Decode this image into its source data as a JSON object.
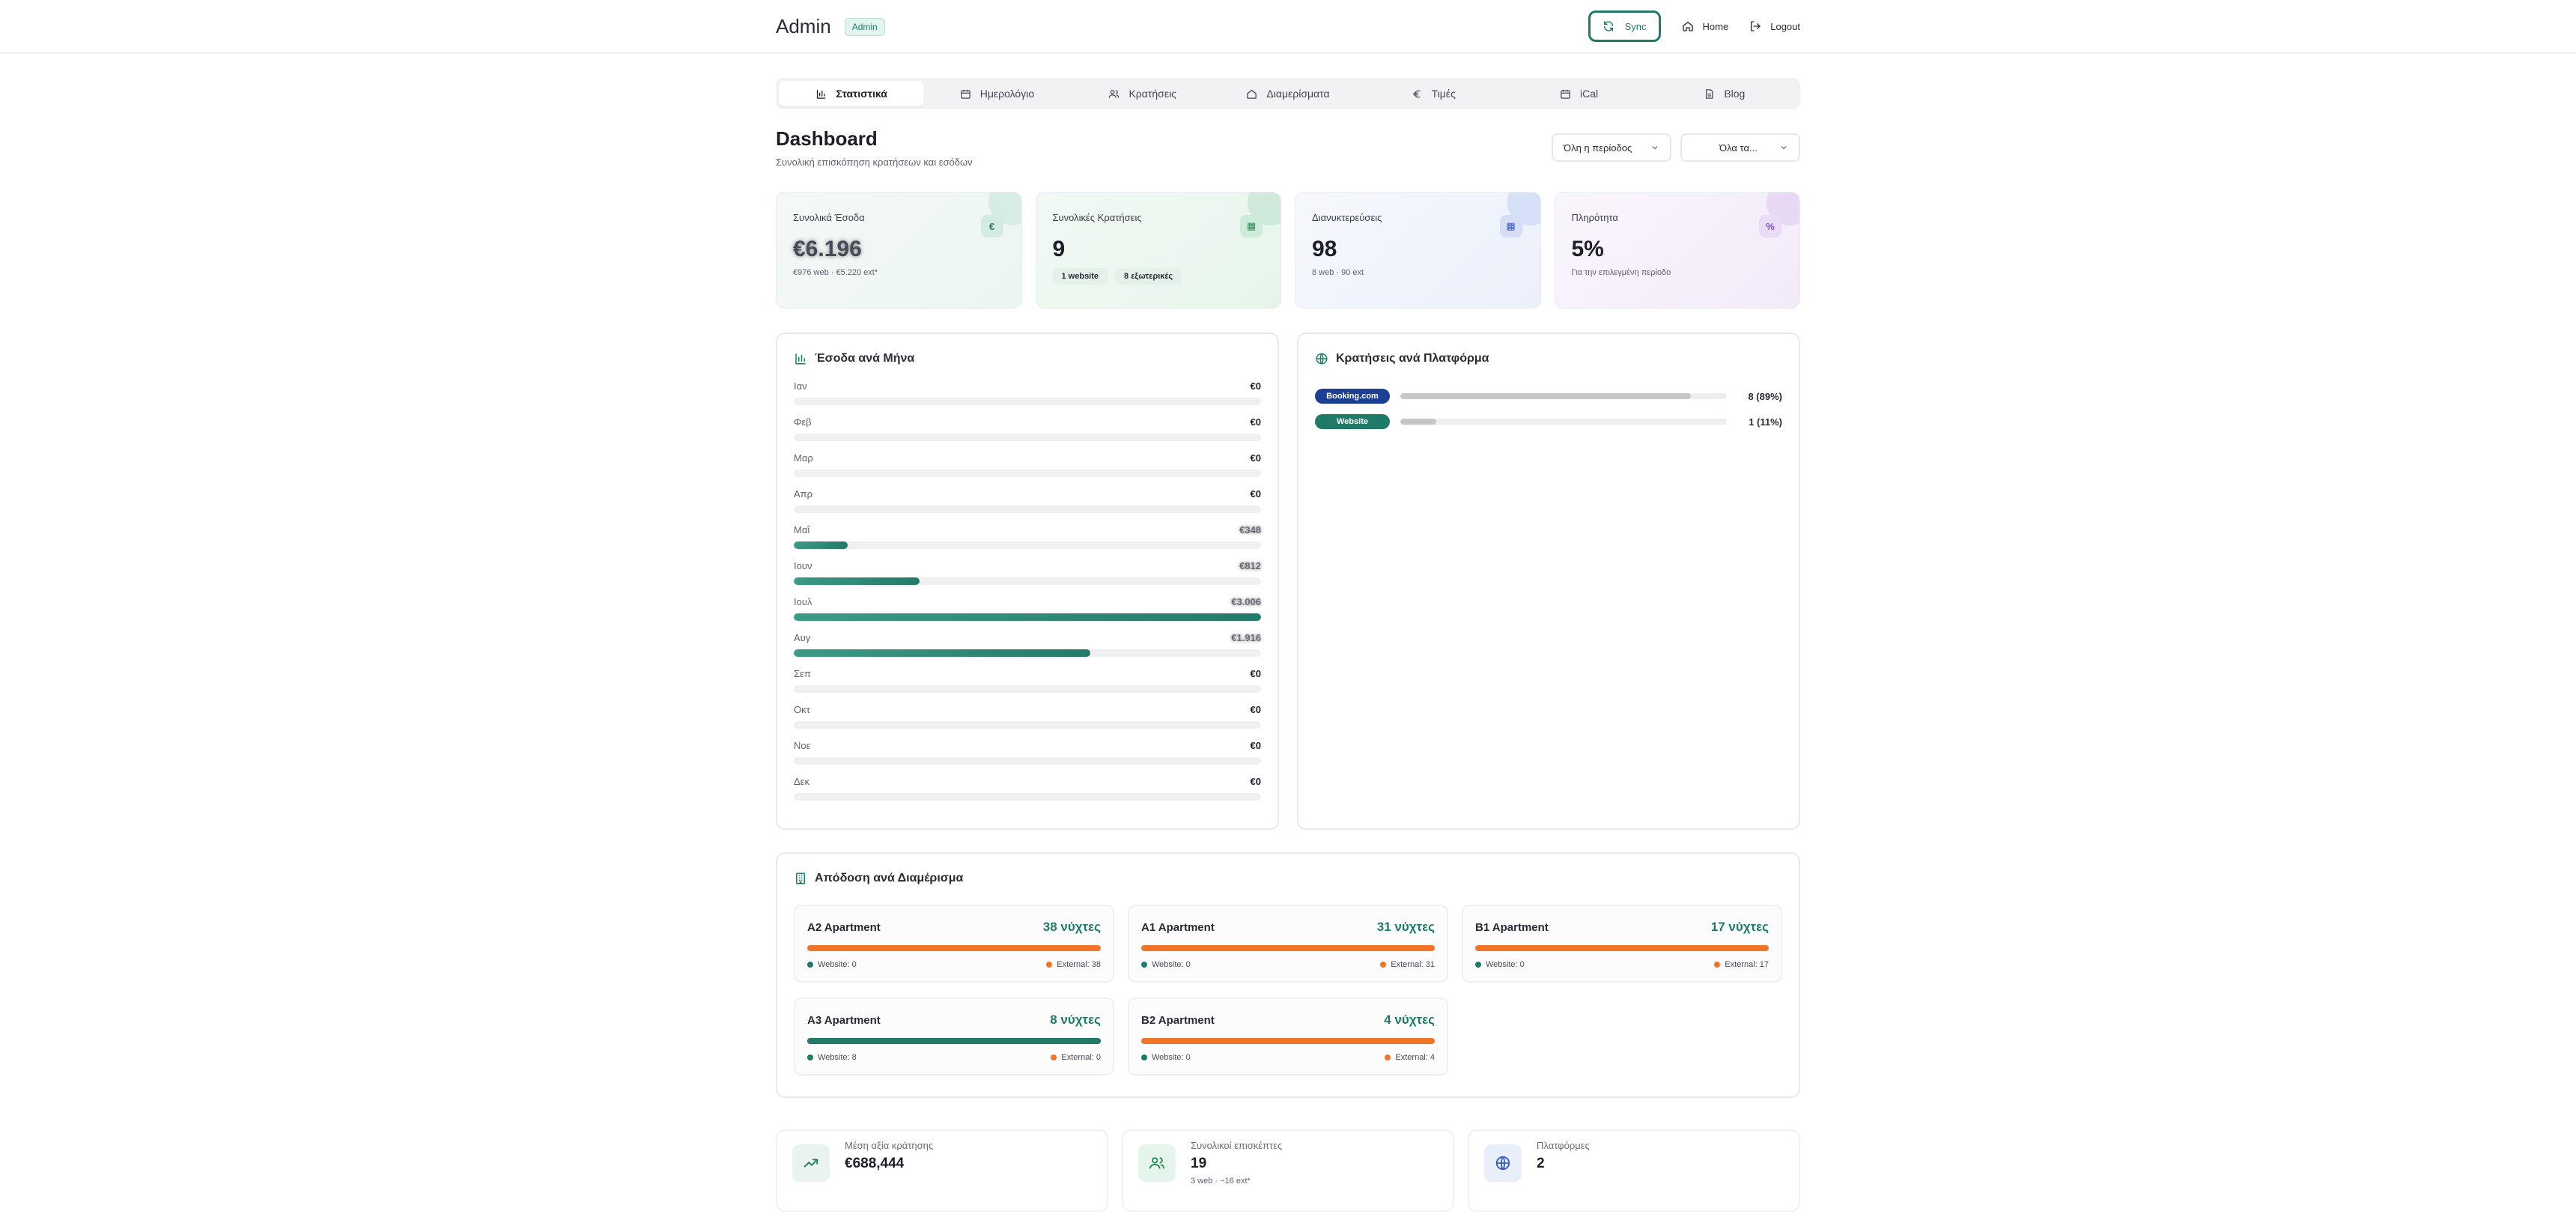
{
  "header": {
    "title": "Admin",
    "badge": "Admin",
    "sync_label": "Sync",
    "home_label": "Home",
    "logout_label": "Logout"
  },
  "tabs": [
    {
      "label": "Στατιστικά",
      "icon": "bar-chart-icon",
      "active": true
    },
    {
      "label": "Ημερολόγιο",
      "icon": "calendar-icon",
      "active": false
    },
    {
      "label": "Κρατήσεις",
      "icon": "users-icon",
      "active": false
    },
    {
      "label": "Διαμερίσματα",
      "icon": "home-icon",
      "active": false
    },
    {
      "label": "Τιμές",
      "icon": "euro-icon",
      "active": false
    },
    {
      "label": "iCal",
      "icon": "calendar-icon",
      "active": false
    },
    {
      "label": "Blog",
      "icon": "document-icon",
      "active": false
    }
  ],
  "dashboard": {
    "title": "Dashboard",
    "subtitle": "Συνολική επισκόπηση κρατήσεων και εσόδων",
    "filter_period": "Όλη η περίοδος",
    "filter_apartments": "Όλα τα..."
  },
  "stats": [
    {
      "label": "Συνολικά Έσοδα",
      "icon_glyph": "€",
      "value": "€6.196",
      "note": "€976 web · €5.220 ext*"
    },
    {
      "label": "Συνολικές Κρατήσεις",
      "icon_glyph": "▦",
      "value": "9",
      "chip1": "1 website",
      "chip2": "8 εξωτερικές"
    },
    {
      "label": "Διανυκτερεύσεις",
      "icon_glyph": "▦",
      "value": "98",
      "note": "8 web · 90 ext"
    },
    {
      "label": "Πληρότητα",
      "icon_glyph": "%",
      "value": "5%",
      "note": "Για την επιλεγμένη περίοδο"
    }
  ],
  "monthly": {
    "title": "Έσοδα ανά Μήνα",
    "months": [
      {
        "name": "Ιαν",
        "value": "€0",
        "fraction": 0
      },
      {
        "name": "Φεβ",
        "value": "€0",
        "fraction": 0
      },
      {
        "name": "Μαρ",
        "value": "€0",
        "fraction": 0
      },
      {
        "name": "Απρ",
        "value": "€0",
        "fraction": 0
      },
      {
        "name": "Μαΐ",
        "value": "€348",
        "fraction": 0.115,
        "blurred": true
      },
      {
        "name": "Ιουν",
        "value": "€812",
        "fraction": 0.27,
        "blurred": true
      },
      {
        "name": "Ιουλ",
        "value": "€3.006",
        "fraction": 1.0,
        "blurred": true
      },
      {
        "name": "Αυγ",
        "value": "€1.916",
        "fraction": 0.635,
        "blurred": true
      },
      {
        "name": "Σεπ",
        "value": "€0",
        "fraction": 0
      },
      {
        "name": "Οκτ",
        "value": "€0",
        "fraction": 0
      },
      {
        "name": "Νοε",
        "value": "€0",
        "fraction": 0
      },
      {
        "name": "Δεκ",
        "value": "€0",
        "fraction": 0
      }
    ]
  },
  "platforms": {
    "title": "Κρατήσεις ανά Πλατφόρμα",
    "items": [
      {
        "name": "Booking.com",
        "color": "#1c3f94",
        "value": "8 (89%)",
        "fraction": 0.89
      },
      {
        "name": "Website",
        "color": "#1f7a68",
        "value": "1 (11%)",
        "fraction": 0.11
      }
    ]
  },
  "apartments": {
    "title": "Απόδοση ανά Διαμέρισμα",
    "items": [
      {
        "name": "A2 Apartment",
        "nights": "38 νύχτες",
        "website": "Website: 0",
        "external": "External: 38",
        "web_fraction": 0
      },
      {
        "name": "A1 Apartment",
        "nights": "31 νύχτες",
        "website": "Website: 0",
        "external": "External: 31",
        "web_fraction": 0
      },
      {
        "name": "B1 Apartment",
        "nights": "17 νύχτες",
        "website": "Website: 0",
        "external": "External: 17",
        "web_fraction": 0
      },
      {
        "name": "A3 Apartment",
        "nights": "8 νύχτες",
        "website": "Website: 8",
        "external": "External: 0",
        "web_fraction": 1
      },
      {
        "name": "B2 Apartment",
        "nights": "4 νύχτες",
        "website": "Website: 0",
        "external": "External: 4",
        "web_fraction": 0
      }
    ]
  },
  "summary": [
    {
      "label": "Μέση αξία κράτησης",
      "value": "€688,444",
      "icon": "trending-up-icon"
    },
    {
      "label": "Συνολικοί επισκέπτες",
      "value": "19",
      "note": "3 web · ~16 ext*",
      "icon": "users-icon"
    },
    {
      "label": "Πλατφόρμες",
      "value": "2",
      "icon": "globe-icon"
    }
  ],
  "colors": {
    "accent": "#1f7a68",
    "external": "#f0742a",
    "booking": "#1c3f94"
  }
}
